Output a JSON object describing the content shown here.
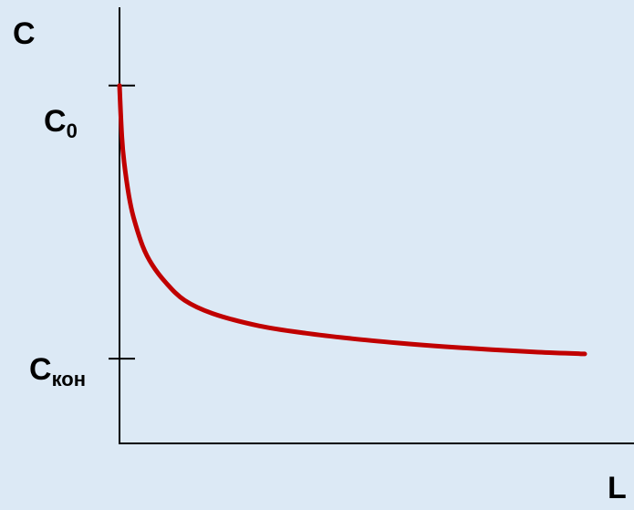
{
  "chart_data": {
    "type": "line",
    "title": "",
    "xlabel": "L",
    "ylabel": "C",
    "xlim": [
      0,
      10
    ],
    "ylim": [
      0,
      1
    ],
    "grid": false,
    "legend": "none",
    "y_ticks": [
      {
        "value": 0.2323,
        "label": "C",
        "subscript": "кон"
      },
      {
        "value": 0.9806,
        "label": "C",
        "subscript": "0"
      }
    ],
    "series": [
      {
        "color": "#c00000",
        "x": [
          0,
          0.05,
          0.1,
          0.2,
          0.3,
          0.5,
          0.7,
          1.0,
          1.4,
          2.0,
          3.0,
          4.0,
          5.0,
          6.0,
          7.0,
          8.0,
          9.0,
          10.0
        ],
        "y": [
          0.9806,
          0.84,
          0.77,
          0.68,
          0.62,
          0.54,
          0.49,
          0.44,
          0.392,
          0.356,
          0.322,
          0.302,
          0.287,
          0.275,
          0.265,
          0.257,
          0.25,
          0.2452
        ]
      }
    ]
  },
  "colors": {
    "background": "#dce9f5",
    "axis": "#000000",
    "curve": "#c00000"
  }
}
